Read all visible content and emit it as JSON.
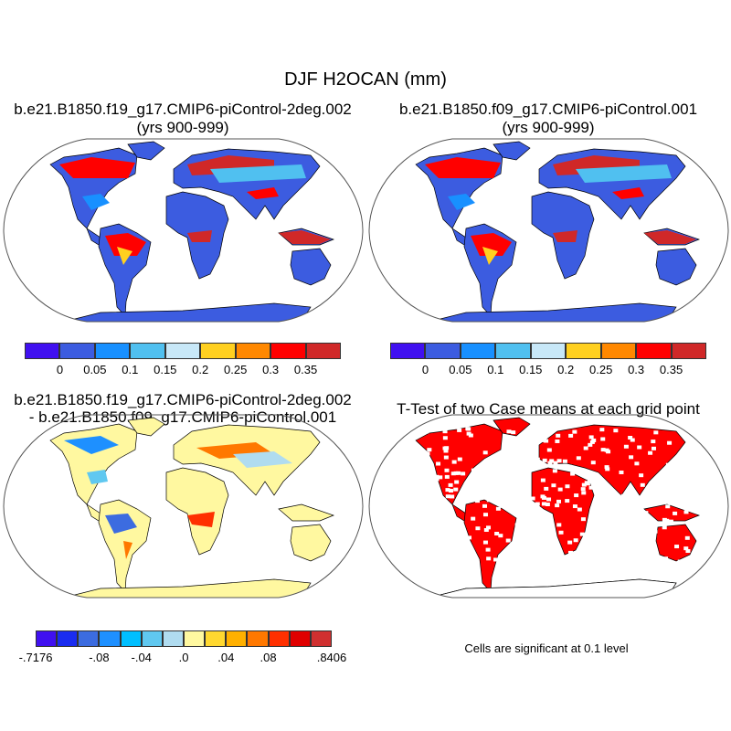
{
  "title": "DJF H2OCAN (mm)",
  "panels": [
    {
      "title1": "b.e21.B1850.f19_g17.CMIP6-piControl-2deg.002",
      "title2": "(yrs 900-999)"
    },
    {
      "title1": "b.e21.B1850.f09_g17.CMIP6-piControl.001",
      "title2": "(yrs 900-999)"
    },
    {
      "title1": "b.e21.B1850.f19_g17.CMIP6-piControl-2deg.002",
      "title2": "- b.e21.B1850.f09_g17.CMIP6-piControl.001"
    },
    {
      "title1": "T-Test of two Case means at each grid point",
      "title2": ""
    }
  ],
  "colorbar_main": {
    "colors": [
      "#4010f0",
      "#3c5ce0",
      "#1890ff",
      "#50c0f0",
      "#c8e8f8",
      "#ffd020",
      "#ff8800",
      "#ff0000",
      "#d02828"
    ],
    "labels": [
      "0",
      "0.05",
      "0.1",
      "0.15",
      "0.2",
      "0.25",
      "0.3",
      "0.35"
    ]
  },
  "colorbar_diff": {
    "colors": [
      "#4010f0",
      "#1a2cf0",
      "#3c6ce0",
      "#1e90ff",
      "#00bfff",
      "#60c8f0",
      "#b0dcf0",
      "#fff8a0",
      "#ffd830",
      "#ffb000",
      "#ff7800",
      "#ff3000",
      "#e00000",
      "#d03030"
    ],
    "labels": [
      {
        "edge": 0,
        "text": "-.7176"
      },
      {
        "edge": 3,
        "text": "-.08"
      },
      {
        "edge": 5,
        "text": "-.04"
      },
      {
        "edge": 7,
        "text": ".0"
      },
      {
        "edge": 9,
        "text": ".04"
      },
      {
        "edge": 11,
        "text": ".08"
      },
      {
        "edge": 14,
        "text": ".8406"
      }
    ]
  },
  "significance_note": "Cells are significant at 0.1 level",
  "significance_color": "#ff0000"
}
